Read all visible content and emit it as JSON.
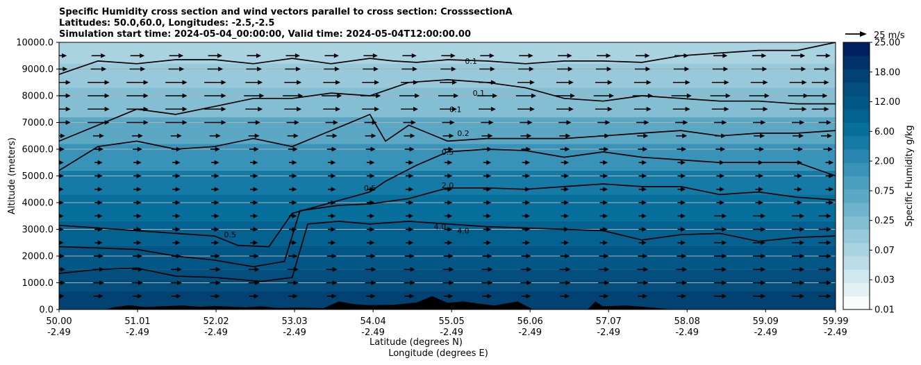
{
  "chart_data": {
    "type": "contourf",
    "title": [
      "Specific Humidity cross section and wind vectors parallel to cross section: CrosssectionA",
      "Latitudes: 50.0,60.0, Longitudes: -2.5,-2.5",
      "Simulation start time: 2024-05-04_00:00:00, Valid time: 2024-05-04T12:00:00.00"
    ],
    "ylabel": "Altitude (meters)",
    "xlabel_lat": "Latitude (degrees N)",
    "xlabel_lon": "Longitude (degrees E)",
    "ylim": [
      0,
      10000
    ],
    "y_ticks": [
      "0.0",
      "1000.0",
      "2000.0",
      "3000.0",
      "4000.0",
      "5000.0",
      "6000.0",
      "7000.0",
      "8000.0",
      "9000.0",
      "10000.0"
    ],
    "y_tick_values": [
      0,
      1000,
      2000,
      3000,
      4000,
      5000,
      6000,
      7000,
      8000,
      9000,
      10000
    ],
    "x_ticks_lat": [
      "50.00",
      "51.01",
      "52.02",
      "53.03",
      "54.04",
      "55.05",
      "56.06",
      "57.07",
      "58.08",
      "59.09",
      "59.99"
    ],
    "x_ticks_lon": [
      "-2.49",
      "-2.49",
      "-2.49",
      "-2.49",
      "-2.49",
      "-2.49",
      "-2.49",
      "-2.49",
      "-2.49",
      "-2.49",
      "-2.49"
    ],
    "colorbar": {
      "label": "Specific Humidity g/kg",
      "tick_labels": [
        "0.01",
        "0.03",
        "0.07",
        "0.25",
        "0.75",
        "2.00",
        "6.00",
        "12.00",
        "18.00",
        "25.00"
      ],
      "levels": 20,
      "colors": [
        "#f7fbfc",
        "#e4f1f4",
        "#cfe7ee",
        "#bcdde8",
        "#a9d3e1",
        "#97c9da",
        "#84bed3",
        "#70b3cc",
        "#5ca8c4",
        "#4a9ebe",
        "#3992b8",
        "#2886b0",
        "#157aa6",
        "#066f9c",
        "#046190",
        "#035786",
        "#034e7c",
        "#024273",
        "#013269",
        "#00205f"
      ]
    },
    "bands_g_per_kg": [
      {
        "bottom_m": 0,
        "top_m": 700,
        "value": 9.0
      },
      {
        "bottom_m": 700,
        "top_m": 1500,
        "value": 7.0
      },
      {
        "bottom_m": 1500,
        "top_m": 2400,
        "value": 5.0
      },
      {
        "bottom_m": 2400,
        "top_m": 3300,
        "value": 3.5
      },
      {
        "bottom_m": 3300,
        "top_m": 4300,
        "value": 2.2
      },
      {
        "bottom_m": 4300,
        "top_m": 5200,
        "value": 1.2
      },
      {
        "bottom_m": 5200,
        "top_m": 6200,
        "value": 0.6
      },
      {
        "bottom_m": 6200,
        "top_m": 7200,
        "value": 0.3
      },
      {
        "bottom_m": 7200,
        "top_m": 8300,
        "value": 0.15
      },
      {
        "bottom_m": 8300,
        "top_m": 9200,
        "value": 0.09
      },
      {
        "bottom_m": 9200,
        "top_m": 10000,
        "value": 0.05
      }
    ],
    "contour_levels": [
      {
        "value": "4.0",
        "points": [
          [
            50.0,
            1350
          ],
          [
            50.5,
            1500
          ],
          [
            51.0,
            1550
          ],
          [
            51.5,
            1250
          ],
          [
            52.0,
            1200
          ],
          [
            52.6,
            1050
          ],
          [
            53.0,
            1200
          ],
          [
            53.2,
            3200
          ],
          [
            53.6,
            3300
          ],
          [
            54.0,
            3200
          ],
          [
            54.5,
            3300
          ],
          [
            55.0,
            3200
          ],
          [
            55.5,
            3100
          ],
          [
            56.0,
            3050
          ],
          [
            56.5,
            3000
          ],
          [
            57.0,
            2950
          ],
          [
            57.5,
            2600
          ],
          [
            58.0,
            2800
          ],
          [
            58.5,
            2850
          ],
          [
            59.0,
            2550
          ],
          [
            59.5,
            2700
          ],
          [
            59.99,
            2750
          ]
        ],
        "labels": [
          {
            "lat": 54.9,
            "alt": 3100,
            "text": "4.0"
          },
          {
            "lat": 55.2,
            "alt": 2950,
            "text": "4.0"
          }
        ]
      },
      {
        "value": "2.0",
        "points": [
          [
            50.0,
            2350
          ],
          [
            50.5,
            2300
          ],
          [
            51.0,
            2250
          ],
          [
            51.5,
            2000
          ],
          [
            52.0,
            1850
          ],
          [
            52.5,
            1600
          ],
          [
            52.9,
            1800
          ],
          [
            53.1,
            3700
          ],
          [
            53.6,
            3900
          ],
          [
            54.0,
            3950
          ],
          [
            54.5,
            4150
          ],
          [
            55.0,
            4550
          ],
          [
            55.5,
            4550
          ],
          [
            56.0,
            4500
          ],
          [
            56.5,
            4600
          ],
          [
            57.0,
            4700
          ],
          [
            57.5,
            4600
          ],
          [
            58.0,
            4600
          ],
          [
            58.5,
            4300
          ],
          [
            59.0,
            4400
          ],
          [
            59.5,
            4200
          ],
          [
            59.99,
            4100
          ]
        ],
        "labels": [
          {
            "lat": 55.0,
            "alt": 4650,
            "text": "2.0"
          }
        ]
      },
      {
        "value": "0.5",
        "points": [
          [
            50.0,
            3150
          ],
          [
            50.5,
            3050
          ],
          [
            51.0,
            2950
          ],
          [
            51.5,
            2850
          ],
          [
            52.0,
            2750
          ],
          [
            52.3,
            2400
          ],
          [
            52.7,
            2350
          ],
          [
            53.0,
            3600
          ],
          [
            53.5,
            4000
          ],
          [
            54.0,
            4400
          ],
          [
            54.2,
            4800
          ],
          [
            54.6,
            5400
          ],
          [
            55.0,
            5900
          ],
          [
            55.5,
            6000
          ],
          [
            56.0,
            5950
          ],
          [
            56.5,
            5700
          ],
          [
            57.0,
            5900
          ],
          [
            57.5,
            5700
          ],
          [
            58.0,
            5600
          ],
          [
            58.5,
            5500
          ],
          [
            59.0,
            5500
          ],
          [
            59.5,
            5500
          ],
          [
            59.99,
            5000
          ]
        ],
        "labels": [
          {
            "lat": 54.0,
            "alt": 4550,
            "text": "0.5"
          },
          {
            "lat": 55.0,
            "alt": 5900,
            "text": "0.5"
          },
          {
            "lat": 52.2,
            "alt": 2800,
            "text": "0.5"
          }
        ]
      },
      {
        "value": "0.2",
        "points": [
          [
            50.0,
            5200
          ],
          [
            50.5,
            6100
          ],
          [
            51.0,
            6300
          ],
          [
            51.5,
            6000
          ],
          [
            52.0,
            6100
          ],
          [
            52.5,
            6400
          ],
          [
            53.0,
            6100
          ],
          [
            53.5,
            6700
          ],
          [
            54.0,
            7300
          ],
          [
            54.2,
            6300
          ],
          [
            54.5,
            6900
          ],
          [
            55.0,
            6300
          ],
          [
            55.5,
            6400
          ],
          [
            56.0,
            6400
          ],
          [
            56.5,
            6400
          ],
          [
            57.0,
            6500
          ],
          [
            57.5,
            6600
          ],
          [
            58.0,
            6700
          ],
          [
            58.5,
            6500
          ],
          [
            59.0,
            6600
          ],
          [
            59.5,
            6600
          ],
          [
            59.99,
            6700
          ]
        ],
        "labels": [
          {
            "lat": 55.2,
            "alt": 6600,
            "text": "0.2"
          }
        ]
      },
      {
        "value": "0.1",
        "points": [
          [
            50.0,
            6300
          ],
          [
            50.5,
            6900
          ],
          [
            51.0,
            7500
          ],
          [
            51.5,
            7300
          ],
          [
            52.0,
            7600
          ],
          [
            52.5,
            7900
          ],
          [
            53.0,
            7900
          ],
          [
            53.5,
            8100
          ],
          [
            54.0,
            8000
          ],
          [
            54.5,
            8500
          ],
          [
            55.0,
            8600
          ],
          [
            55.5,
            8500
          ],
          [
            56.0,
            8300
          ],
          [
            56.5,
            7900
          ],
          [
            57.0,
            7800
          ],
          [
            57.5,
            8000
          ],
          [
            58.0,
            7900
          ],
          [
            58.5,
            7800
          ],
          [
            59.0,
            7800
          ],
          [
            59.5,
            7700
          ],
          [
            59.99,
            7700
          ]
        ],
        "labels": [
          {
            "lat": 55.1,
            "alt": 7500,
            "text": "0.1"
          },
          {
            "lat": 55.4,
            "alt": 8100,
            "text": "0.1"
          }
        ]
      },
      {
        "value": "0.1",
        "points": [
          [
            50.0,
            8800
          ],
          [
            50.5,
            9300
          ],
          [
            51.0,
            9200
          ],
          [
            51.5,
            9350
          ],
          [
            52.0,
            9350
          ],
          [
            52.5,
            9200
          ],
          [
            53.0,
            9400
          ],
          [
            53.5,
            9200
          ],
          [
            54.0,
            9400
          ],
          [
            54.3,
            9300
          ],
          [
            54.6,
            9250
          ],
          [
            55.0,
            9350
          ],
          [
            55.5,
            9300
          ],
          [
            56.0,
            9200
          ],
          [
            56.5,
            9300
          ],
          [
            57.0,
            9300
          ],
          [
            57.5,
            9250
          ],
          [
            58.0,
            9500
          ],
          [
            58.5,
            9600
          ],
          [
            59.0,
            9700
          ],
          [
            59.5,
            9700
          ],
          [
            59.99,
            10000
          ]
        ],
        "labels": [
          {
            "lat": 55.3,
            "alt": 9300,
            "text": "0.1"
          }
        ]
      }
    ],
    "terrain": [
      [
        50.0,
        0
      ],
      [
        50.6,
        0
      ],
      [
        50.7,
        80
      ],
      [
        50.9,
        160
      ],
      [
        51.1,
        90
      ],
      [
        51.3,
        120
      ],
      [
        51.6,
        150
      ],
      [
        51.8,
        100
      ],
      [
        52.0,
        130
      ],
      [
        52.4,
        80
      ],
      [
        52.6,
        120
      ],
      [
        52.8,
        60
      ],
      [
        53.1,
        70
      ],
      [
        53.4,
        50
      ],
      [
        53.6,
        300
      ],
      [
        53.8,
        200
      ],
      [
        54.0,
        160
      ],
      [
        54.3,
        180
      ],
      [
        54.6,
        260
      ],
      [
        54.8,
        500
      ],
      [
        55.0,
        250
      ],
      [
        55.2,
        300
      ],
      [
        55.4,
        220
      ],
      [
        55.6,
        150
      ],
      [
        55.9,
        300
      ],
      [
        56.1,
        0
      ],
      [
        56.8,
        0
      ],
      [
        56.9,
        300
      ],
      [
        57.0,
        120
      ],
      [
        57.3,
        150
      ],
      [
        57.6,
        80
      ],
      [
        57.9,
        0
      ],
      [
        59.99,
        0
      ]
    ],
    "wind_quiver_key": "25 m/s",
    "wind_rows_m": [
      500,
      1000,
      1500,
      2000,
      2500,
      3000,
      3500,
      4000,
      4500,
      5000,
      5500,
      6000,
      6500,
      7000,
      7500,
      8000,
      8500,
      9000,
      9500
    ],
    "wind_cols_deg": [
      50.0,
      50.5,
      51.0,
      51.5,
      52.0,
      52.5,
      53.0,
      53.5,
      54.0,
      54.5,
      55.0,
      55.5,
      56.0,
      56.5,
      57.0,
      57.5,
      58.0,
      58.5,
      59.0,
      59.5,
      59.99
    ],
    "wind_speed_by_row": [
      4,
      5,
      5,
      4,
      3,
      3,
      3,
      3,
      3,
      3,
      3,
      4,
      5,
      6,
      9,
      11,
      9,
      8,
      7
    ]
  }
}
